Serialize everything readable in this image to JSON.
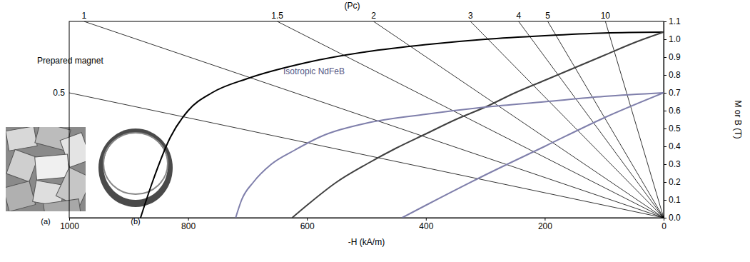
{
  "chart_data": {
    "type": "line",
    "xlabel": "-H (kA/m)",
    "ylabel": "M or B (T)",
    "xlim": [
      1000,
      0
    ],
    "xticks": [
      1000,
      800,
      600,
      400,
      200,
      0
    ],
    "ylim": [
      0,
      1.1
    ],
    "yticks": [
      {
        "value": 0,
        "label": "0.0"
      },
      {
        "value": 0.1,
        "label": "0.1"
      },
      {
        "value": 0.2,
        "label": "0.2"
      },
      {
        "value": 0.3,
        "label": "0.3"
      },
      {
        "value": 0.4,
        "label": "0.4"
      },
      {
        "value": 0.5,
        "label": "0.5"
      },
      {
        "value": 0.6,
        "label": "0.6"
      },
      {
        "value": 0.7,
        "label": "0.7"
      },
      {
        "value": 0.8,
        "label": "0.8"
      },
      {
        "value": 0.9,
        "label": "0.9"
      },
      {
        "value": 1,
        "label": "1.0"
      },
      {
        "value": 1.1,
        "label": "1.1"
      }
    ],
    "grid": false,
    "series": [
      {
        "name": "Prepared magnet",
        "color": "#000000",
        "x": [
          880,
          860,
          830,
          800,
          760,
          700,
          600,
          500,
          400,
          300,
          200,
          100,
          0
        ],
        "values": [
          0,
          0.2,
          0.45,
          0.6,
          0.7,
          0.78,
          0.87,
          0.93,
          0.97,
          1.0,
          1.02,
          1.035,
          1.04
        ]
      },
      {
        "color": "#404040",
        "x": [
          625,
          600,
          550,
          500,
          450,
          400,
          350,
          300,
          250,
          200,
          150,
          100,
          50,
          0
        ],
        "values": [
          0,
          0.07,
          0.2,
          0.3,
          0.39,
          0.47,
          0.55,
          0.62,
          0.7,
          0.77,
          0.84,
          0.91,
          0.98,
          1.04
        ]
      },
      {
        "name": "Isotropic NdFeB",
        "color": "#7f7fab",
        "x": [
          720,
          710,
          690,
          660,
          620,
          580,
          500,
          400,
          300,
          200,
          100,
          0
        ],
        "values": [
          0,
          0.1,
          0.2,
          0.3,
          0.38,
          0.45,
          0.53,
          0.58,
          0.62,
          0.65,
          0.68,
          0.7
        ]
      },
      {
        "color": "#7f7fab",
        "x": [
          440,
          400,
          300,
          200,
          100,
          0
        ],
        "values": [
          0,
          0.07,
          0.24,
          0.4,
          0.56,
          0.7
        ]
      }
    ],
    "load_line_title": "(Pc)",
    "load_lines": [
      {
        "label": "0.5",
        "x": [
          0,
          1000
        ],
        "values": [
          0,
          0.7
        ]
      },
      {
        "label": "1",
        "x": [
          0,
          975
        ],
        "values": [
          0,
          1.1
        ]
      },
      {
        "label": "1.5",
        "x": [
          0,
          650
        ],
        "values": [
          0,
          1.1
        ]
      },
      {
        "label": "2",
        "x": [
          0,
          488
        ],
        "values": [
          0,
          1.1
        ]
      },
      {
        "label": "3",
        "x": [
          0,
          325
        ],
        "values": [
          0,
          1.1
        ]
      },
      {
        "label": "4",
        "x": [
          0,
          244
        ],
        "values": [
          0,
          1.1
        ]
      },
      {
        "label": "5",
        "x": [
          0,
          195
        ],
        "values": [
          0,
          1.1
        ]
      },
      {
        "label": "10",
        "x": [
          0,
          98
        ],
        "values": [
          0,
          1.1
        ]
      }
    ]
  },
  "images": [
    {
      "caption": "(a)"
    },
    {
      "caption": "(b)"
    }
  ]
}
